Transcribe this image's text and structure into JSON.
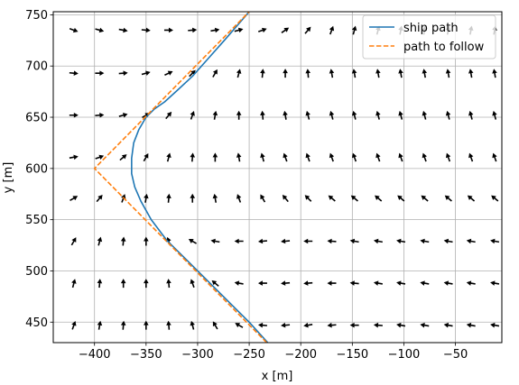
{
  "chart_data": {
    "type": "line",
    "xlabel": "x [m]",
    "ylabel": "y [m]",
    "xlim": [
      -440,
      -5
    ],
    "ylim": [
      430,
      753
    ],
    "grid": true,
    "legend_position": "top-right",
    "x_ticks": [
      -400,
      -350,
      -300,
      -250,
      -200,
      -150,
      -100,
      -50
    ],
    "y_ticks": [
      450,
      500,
      550,
      600,
      650,
      700,
      750
    ],
    "x_tick_labels": [
      "−400",
      "−350",
      "−300",
      "−250",
      "−200",
      "−150",
      "−100",
      "−50"
    ],
    "y_tick_labels": [
      "450",
      "500",
      "550",
      "600",
      "650",
      "700",
      "750"
    ],
    "series": [
      {
        "name": "ship path",
        "style": "solid",
        "color": "#1f77b4",
        "x": [
          -232,
          -250,
          -270,
          -290,
          -310,
          -330,
          -345,
          -355,
          -361,
          -364,
          -364,
          -362,
          -357,
          -350,
          -342,
          -332,
          -320,
          -305,
          -290,
          -275,
          -262,
          -250
        ],
        "y": [
          430,
          450,
          470,
          490,
          510,
          530,
          550,
          568,
          582,
          595,
          610,
          625,
          638,
          650,
          658,
          665,
          676,
          690,
          707,
          724,
          739,
          753
        ]
      },
      {
        "name": "path to follow",
        "style": "dashed",
        "color": "#ff7f0e",
        "x": [
          -233,
          -400,
          -250
        ],
        "y": [
          430,
          600,
          753
        ]
      }
    ],
    "vector_field": {
      "color": "#000000",
      "x": [
        -420,
        -395,
        -372,
        -350,
        -328,
        -305,
        -283,
        -260,
        -237,
        -215,
        -193,
        -170,
        -148,
        -125,
        -103,
        -80,
        -57,
        -35,
        -12
      ],
      "rows": [
        {
          "y": 735,
          "angles_deg": [
            -20,
            -15,
            -10,
            -5,
            0,
            5,
            10,
            15,
            20,
            35,
            50,
            70,
            75,
            75,
            80,
            80,
            80,
            80,
            80
          ]
        },
        {
          "y": 693,
          "angles_deg": [
            -5,
            0,
            5,
            15,
            25,
            45,
            60,
            75,
            85,
            90,
            95,
            100,
            100,
            100,
            100,
            100,
            100,
            100,
            100
          ]
        },
        {
          "y": 652,
          "angles_deg": [
            0,
            5,
            15,
            30,
            50,
            70,
            80,
            90,
            95,
            100,
            105,
            105,
            105,
            105,
            105,
            105,
            105,
            105,
            105
          ]
        },
        {
          "y": 611,
          "angles_deg": [
            10,
            20,
            40,
            60,
            75,
            85,
            90,
            100,
            105,
            110,
            110,
            110,
            110,
            110,
            110,
            110,
            110,
            110,
            110
          ]
        },
        {
          "y": 571,
          "angles_deg": [
            30,
            50,
            70,
            80,
            85,
            90,
            100,
            110,
            120,
            130,
            135,
            140,
            140,
            140,
            140,
            140,
            140,
            140,
            140
          ]
        },
        {
          "y": 529,
          "angles_deg": [
            60,
            75,
            85,
            90,
            110,
            150,
            170,
            180,
            185,
            185,
            180,
            175,
            170,
            170,
            170,
            170,
            170,
            170,
            170
          ]
        },
        {
          "y": 488,
          "angles_deg": [
            75,
            85,
            90,
            90,
            95,
            110,
            140,
            170,
            180,
            185,
            185,
            180,
            175,
            170,
            170,
            170,
            170,
            170,
            170
          ]
        },
        {
          "y": 447,
          "angles_deg": [
            70,
            80,
            85,
            90,
            95,
            105,
            120,
            150,
            175,
            185,
            190,
            185,
            180,
            175,
            170,
            170,
            170,
            170,
            170
          ]
        }
      ]
    }
  }
}
